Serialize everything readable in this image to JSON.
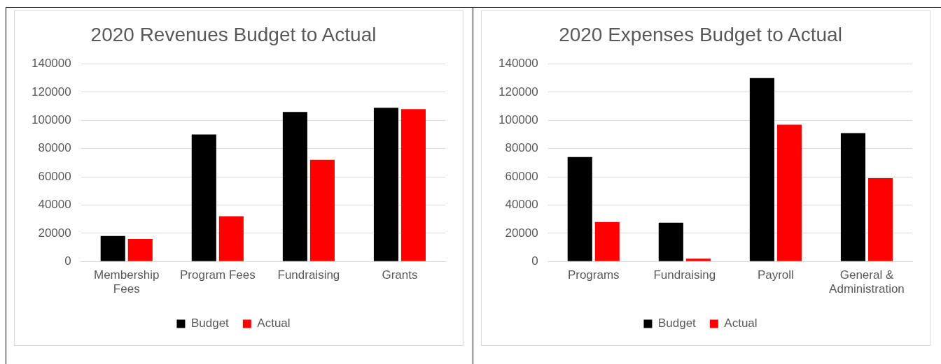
{
  "chart_data": [
    {
      "type": "bar",
      "title": "2020 Revenues Budget to Actual",
      "categories": [
        "Membership Fees",
        "Program Fees",
        "Fundraising",
        "Grants"
      ],
      "series": [
        {
          "name": "Budget",
          "color": "#000000",
          "values": [
            18000,
            90000,
            106000,
            109000
          ]
        },
        {
          "name": "Actual",
          "color": "#ff0000",
          "values": [
            16000,
            32000,
            72000,
            108000
          ]
        }
      ],
      "ylim": [
        0,
        140000
      ],
      "yticks": [
        0,
        20000,
        40000,
        60000,
        80000,
        100000,
        120000,
        140000
      ],
      "grid": "y",
      "legend": "bottom"
    },
    {
      "type": "bar",
      "title": "2020 Expenses Budget to Actual",
      "categories": [
        "Programs",
        "Fundraising",
        "Payroll",
        "General & Administration"
      ],
      "series": [
        {
          "name": "Budget",
          "color": "#000000",
          "values": [
            74000,
            27500,
            130000,
            91000
          ]
        },
        {
          "name": "Actual",
          "color": "#ff0000",
          "values": [
            28000,
            2000,
            97000,
            59000
          ]
        }
      ],
      "ylim": [
        0,
        140000
      ],
      "yticks": [
        0,
        20000,
        40000,
        60000,
        80000,
        100000,
        120000,
        140000
      ],
      "grid": "y",
      "legend": "bottom"
    }
  ]
}
